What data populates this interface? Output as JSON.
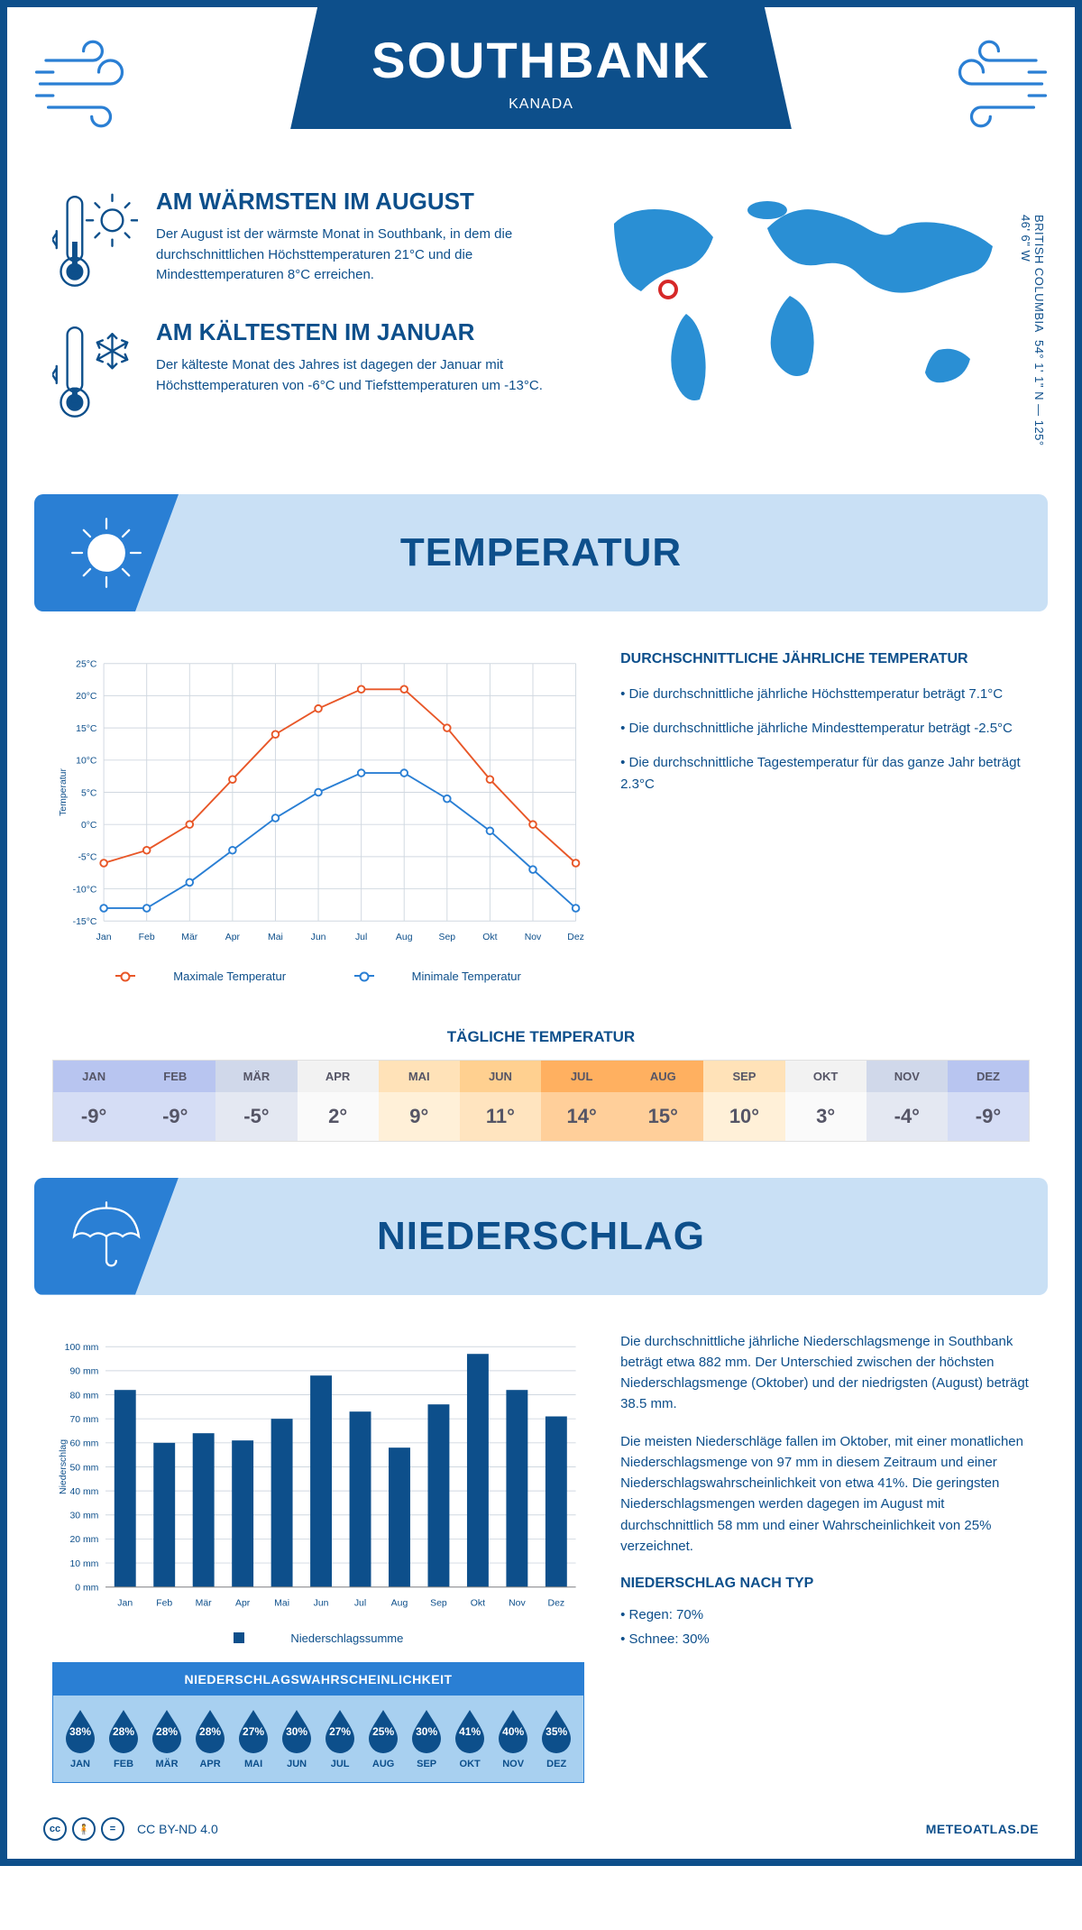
{
  "header": {
    "title": "SOUTHBANK",
    "country": "KANADA"
  },
  "coords": {
    "line1": "54° 1' 1\" N — 125° 46' 6\" W",
    "region": "BRITISH COLUMBIA"
  },
  "marker": {
    "left_pct": 18,
    "top_pct": 35
  },
  "warm": {
    "title": "AM WÄRMSTEN IM AUGUST",
    "text": "Der August ist der wärmste Monat in Southbank, in dem die durchschnittlichen Höchsttemperaturen 21°C und die Mindesttemperaturen 8°C erreichen."
  },
  "cold": {
    "title": "AM KÄLTESTEN IM JANUAR",
    "text": "Der kälteste Monat des Jahres ist dagegen der Januar mit Höchsttemperaturen von -6°C und Tiefsttemperaturen um -13°C."
  },
  "temp_section": {
    "title": "TEMPERATUR"
  },
  "temp_info": {
    "heading": "DURCHSCHNITTLICHE JÄHRLICHE TEMPERATUR",
    "b1": "• Die durchschnittliche jährliche Höchsttemperatur beträgt 7.1°C",
    "b2": "• Die durchschnittliche jährliche Mindesttemperatur beträgt -2.5°C",
    "b3": "• Die durchschnittliche Tagestemperatur für das ganze Jahr beträgt 2.3°C"
  },
  "daily_title": "TÄGLICHE TEMPERATUR",
  "months": [
    "JAN",
    "FEB",
    "MÄR",
    "APR",
    "MAI",
    "JUN",
    "JUL",
    "AUG",
    "SEP",
    "OKT",
    "NOV",
    "DEZ"
  ],
  "months_long": [
    "Jan",
    "Feb",
    "Mär",
    "Apr",
    "Mai",
    "Jun",
    "Jul",
    "Aug",
    "Sep",
    "Okt",
    "Nov",
    "Dez"
  ],
  "temp_chart": {
    "max": {
      "label": "Maximale Temperatur",
      "color": "#e85728",
      "values": [
        -6,
        -4,
        0,
        7,
        14,
        18,
        21,
        21,
        15,
        7,
        0,
        -6
      ]
    },
    "min": {
      "label": "Minimale Temperatur",
      "color": "#2a7fd4",
      "values": [
        -13,
        -13,
        -9,
        -4,
        1,
        5,
        8,
        8,
        4,
        -1,
        -7,
        -13
      ]
    },
    "ylabel": "Temperatur",
    "ylim": [
      -15,
      25
    ],
    "ytick": 5,
    "grid_color": "#d0d8e0"
  },
  "daily": {
    "values": [
      "-9°",
      "-9°",
      "-5°",
      "2°",
      "9°",
      "11°",
      "14°",
      "15°",
      "10°",
      "3°",
      "-4°",
      "-9°"
    ],
    "head_bg": [
      "#b8c5f0",
      "#b8c5f0",
      "#d0d8ea",
      "#f2f2f2",
      "#ffe2b8",
      "#ffd090",
      "#ffb060",
      "#ffb060",
      "#ffe2b8",
      "#f2f2f2",
      "#d0d8ea",
      "#b8c5f0"
    ],
    "val_bg": [
      "#d5ddf5",
      "#d5ddf5",
      "#e4e8f2",
      "#fafafa",
      "#fff0d8",
      "#ffe4bf",
      "#ffcf9a",
      "#ffcf9a",
      "#fff0d8",
      "#fafafa",
      "#e4e8f2",
      "#d5ddf5"
    ]
  },
  "precip_section": {
    "title": "NIEDERSCHLAG"
  },
  "precip_chart": {
    "label": "Niederschlagssumme",
    "ylabel": "Niederschlag",
    "color": "#0d4f8b",
    "values": [
      82,
      60,
      64,
      61,
      70,
      88,
      73,
      58,
      76,
      97,
      82,
      71
    ],
    "ylim": [
      0,
      100
    ],
    "ytick": 10,
    "unit": "mm",
    "grid_color": "#d0d8e0"
  },
  "precip_text": {
    "p1": "Die durchschnittliche jährliche Niederschlagsmenge in Southbank beträgt etwa 882 mm. Der Unterschied zwischen der höchsten Niederschlagsmenge (Oktober) und der niedrigsten (August) beträgt 38.5 mm.",
    "p2": "Die meisten Niederschläge fallen im Oktober, mit einer monatlichen Niederschlagsmenge von 97 mm in diesem Zeitraum und einer Niederschlagswahrscheinlichkeit von etwa 41%. Die geringsten Niederschlagsmengen werden dagegen im August mit durchschnittlich 58 mm und einer Wahrscheinlichkeit von 25% verzeichnet.",
    "type_heading": "NIEDERSCHLAG NACH TYP",
    "type1": "• Regen: 70%",
    "type2": "• Schnee: 30%"
  },
  "prob": {
    "title": "NIEDERSCHLAGSWAHRSCHEINLICHKEIT",
    "values": [
      "38%",
      "28%",
      "28%",
      "28%",
      "27%",
      "30%",
      "27%",
      "25%",
      "30%",
      "41%",
      "40%",
      "35%"
    ],
    "drop_color": "#0d4f8b"
  },
  "footer": {
    "license": "CC BY-ND 4.0",
    "brand": "METEOATLAS.DE"
  }
}
